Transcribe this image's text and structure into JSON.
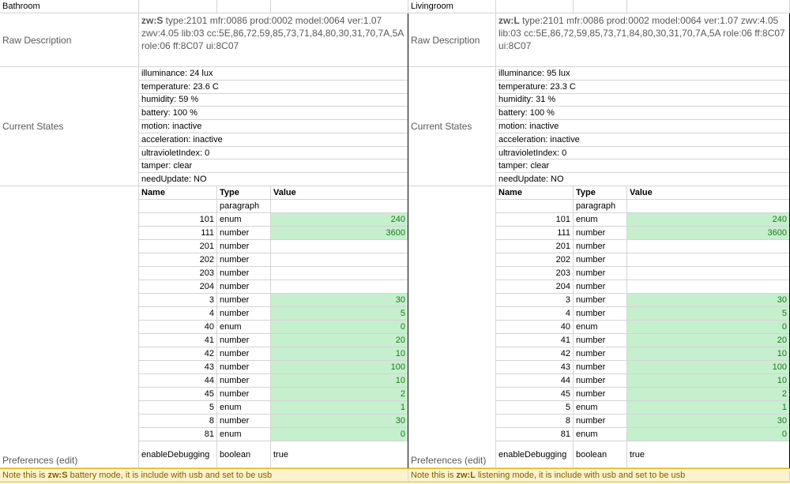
{
  "panels": [
    {
      "title": "Bathroom",
      "raw_label": "Raw Description",
      "raw_description": {
        "device": "zw:S",
        "details": " type:2101 mfr:0086 prod:0002 model:0064 ver:1.07 zwv:4.05 lib:03 cc:5E,86,72,59,85,73,71,84,80,30,31,70,7A,5A role:06 ff:8C07 ui:8C07"
      },
      "states_label": "Current States",
      "states": [
        "illuminance: 24 lux",
        "temperature: 23.6 C",
        "humidity: 59 %",
        "battery: 100 %",
        "motion: inactive",
        "acceleration: inactive",
        "ultravioletIndex: 0",
        "tamper: clear",
        "needUpdate: NO"
      ],
      "preferences_label": "Preferences (edit)",
      "preferences": {
        "columns": [
          "Name",
          "Type",
          "Value"
        ],
        "rows": [
          {
            "name": null,
            "type": "paragraph",
            "value": null
          },
          {
            "name": "101",
            "type": "enum",
            "value": 240
          },
          {
            "name": "111",
            "type": "number",
            "value": 3600
          },
          {
            "name": "201",
            "type": "number",
            "value": null
          },
          {
            "name": "202",
            "type": "number",
            "value": null
          },
          {
            "name": "203",
            "type": "number",
            "value": null
          },
          {
            "name": "204",
            "type": "number",
            "value": null
          },
          {
            "name": "3",
            "type": "number",
            "value": 30
          },
          {
            "name": "4",
            "type": "number",
            "value": 5
          },
          {
            "name": "40",
            "type": "enum",
            "value": 0
          },
          {
            "name": "41",
            "type": "number",
            "value": 20
          },
          {
            "name": "42",
            "type": "number",
            "value": 10
          },
          {
            "name": "43",
            "type": "number",
            "value": 100
          },
          {
            "name": "44",
            "type": "number",
            "value": 10
          },
          {
            "name": "45",
            "type": "number",
            "value": 2
          },
          {
            "name": "5",
            "type": "enum",
            "value": 1
          },
          {
            "name": "8",
            "type": "number",
            "value": 30
          },
          {
            "name": "81",
            "type": "enum",
            "value": 0
          },
          {
            "name": "enableDebugging",
            "type": "boolean",
            "value": "true"
          }
        ]
      },
      "note": {
        "prefix": "Note this is ",
        "device": "zw:S",
        "suffix": " battery mode, it is include with usb and set to be usb"
      }
    },
    {
      "title": "Livingroom",
      "raw_label": "Raw Description",
      "raw_description": {
        "device": "zw:L",
        "details": " type:2101 mfr:0086 prod:0002 model:0064 ver:1.07 zwv:4.05 lib:03 cc:5E,86,72,59,85,73,71,84,80,30,31,70,7A,5A role:06 ff:8C07 ui:8C07"
      },
      "states_label": "Current States",
      "states": [
        "illuminance: 95 lux",
        "temperature: 23.3 C",
        "humidity: 31 %",
        "battery: 100 %",
        "motion: inactive",
        "acceleration: inactive",
        "ultravioletIndex: 0",
        "tamper: clear",
        "needUpdate: NO"
      ],
      "preferences_label": "Preferences (edit)",
      "preferences": {
        "columns": [
          "Name",
          "Type",
          "Value"
        ],
        "rows": [
          {
            "name": null,
            "type": "paragraph",
            "value": null
          },
          {
            "name": "101",
            "type": "enum",
            "value": 240
          },
          {
            "name": "111",
            "type": "number",
            "value": 3600
          },
          {
            "name": "201",
            "type": "number",
            "value": null
          },
          {
            "name": "202",
            "type": "number",
            "value": null
          },
          {
            "name": "203",
            "type": "number",
            "value": null
          },
          {
            "name": "204",
            "type": "number",
            "value": null
          },
          {
            "name": "3",
            "type": "number",
            "value": 30
          },
          {
            "name": "4",
            "type": "number",
            "value": 5
          },
          {
            "name": "40",
            "type": "enum",
            "value": 0
          },
          {
            "name": "41",
            "type": "number",
            "value": 20
          },
          {
            "name": "42",
            "type": "number",
            "value": 10
          },
          {
            "name": "43",
            "type": "number",
            "value": 100
          },
          {
            "name": "44",
            "type": "number",
            "value": 10
          },
          {
            "name": "45",
            "type": "number",
            "value": 2
          },
          {
            "name": "5",
            "type": "enum",
            "value": 1
          },
          {
            "name": "8",
            "type": "number",
            "value": 30
          },
          {
            "name": "81",
            "type": "enum",
            "value": 0
          },
          {
            "name": "enableDebugging",
            "type": "boolean",
            "value": "true"
          }
        ]
      },
      "note": {
        "prefix": "Note this is ",
        "device": "zw:L",
        "suffix": " listening mode, it is include with usb and set to be usb"
      }
    }
  ]
}
